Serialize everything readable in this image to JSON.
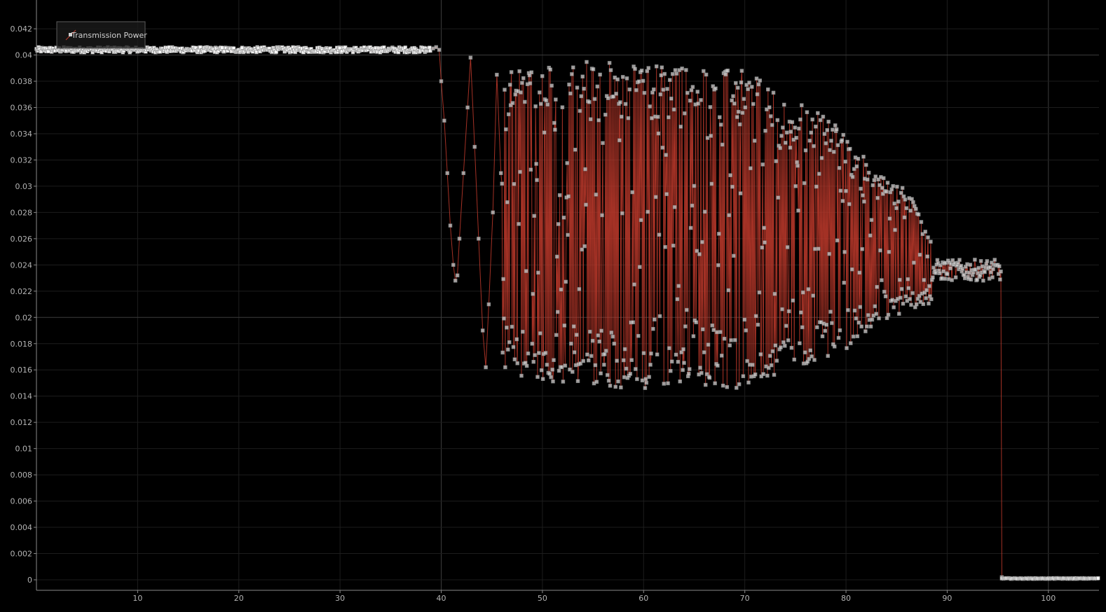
{
  "chart_data": {
    "type": "scatter",
    "title": "",
    "xlabel": "",
    "ylabel": "",
    "xlim": [
      0,
      105
    ],
    "ylim": [
      0,
      0.0435
    ],
    "x_ticks": [
      10,
      20,
      30,
      40,
      50,
      60,
      70,
      80,
      90,
      100
    ],
    "x_tick_labels": [
      "10",
      "20",
      "30",
      "40",
      "50",
      "60",
      "70",
      "80",
      "90",
      "100"
    ],
    "y_ticks": [
      0,
      0.002,
      0.004,
      0.006,
      0.008,
      0.01,
      0.012,
      0.014,
      0.016,
      0.018,
      0.02,
      0.022,
      0.024,
      0.026,
      0.028,
      0.03,
      0.032,
      0.034,
      0.036,
      0.038,
      0.04,
      0.042
    ],
    "y_tick_labels": [
      "0",
      "0.002",
      "0.004",
      "0.006",
      "0.008",
      "0.01",
      "0.012",
      "0.014",
      "0.016",
      "0.018",
      "0.02",
      "0.022",
      "0.024",
      "0.026",
      "0.028",
      "0.03",
      "0.032",
      "0.034",
      "0.036",
      "0.038",
      "0.04",
      "0.042"
    ],
    "major_x_gridlines": [
      40,
      100
    ],
    "major_y_gridlines": [
      0.02,
      0.04
    ],
    "grid": true,
    "legend": {
      "position": "top-left",
      "entries": [
        "Transmission Power"
      ]
    },
    "series": [
      {
        "name": "Transmission Power",
        "line_color": "#c0392b",
        "marker_color": "#cfcfcf",
        "marker": "square",
        "segments": [
          {
            "phase": "stable",
            "x_range": [
              0,
              39
            ],
            "y_level": 0.0404,
            "y_spread": 0.0002
          },
          {
            "phase": "bump",
            "points": [
              [
                38.5,
                0.0403
              ],
              [
                39.2,
                0.0405
              ],
              [
                39.5,
                0.0406
              ],
              [
                39.8,
                0.0404
              ]
            ]
          },
          {
            "phase": "drop",
            "points": [
              [
                40,
                0.038
              ],
              [
                40.3,
                0.035
              ],
              [
                40.6,
                0.031
              ],
              [
                40.9,
                0.027
              ],
              [
                41.2,
                0.024
              ],
              [
                41.4,
                0.0228
              ],
              [
                41.6,
                0.0232
              ],
              [
                41.8,
                0.026
              ],
              [
                42.2,
                0.031
              ],
              [
                42.6,
                0.036
              ],
              [
                42.9,
                0.0398
              ]
            ]
          },
          {
            "phase": "first-cycles",
            "points": [
              [
                43.3,
                0.033
              ],
              [
                43.7,
                0.026
              ],
              [
                44.1,
                0.019
              ],
              [
                44.4,
                0.0162
              ],
              [
                44.7,
                0.021
              ],
              [
                45.1,
                0.028
              ],
              [
                45.5,
                0.0385
              ],
              [
                45.9,
                0.031
              ]
            ]
          },
          {
            "phase": "oscillation",
            "x_range": [
              46,
              88.5
            ],
            "upper_envelope": [
              [
                46,
                0.0386
              ],
              [
                55,
                0.0396
              ],
              [
                62,
                0.0392
              ],
              [
                70,
                0.0388
              ],
              [
                75,
                0.0368
              ],
              [
                80,
                0.0342
              ],
              [
                83,
                0.031
              ],
              [
                86,
                0.0298
              ],
              [
                88.5,
                0.0265
              ]
            ],
            "lower_envelope": [
              [
                46,
                0.0158
              ],
              [
                55,
                0.0145
              ],
              [
                62,
                0.0146
              ],
              [
                70,
                0.0146
              ],
              [
                75,
                0.0162
              ],
              [
                80,
                0.0175
              ],
              [
                83,
                0.0196
              ],
              [
                86,
                0.0205
              ],
              [
                88.5,
                0.021
              ]
            ]
          },
          {
            "phase": "settling",
            "x_range": [
              88.5,
              95.3
            ],
            "y_level": 0.0236,
            "y_spread": 0.0008
          },
          {
            "phase": "cutoff",
            "points": [
              [
                95.3,
                0.0235
              ],
              [
                95.4,
                0.0002
              ]
            ]
          },
          {
            "phase": "zero",
            "x_range": [
              95.4,
              105
            ],
            "y_level": 0.0001,
            "y_spread": 3e-05
          }
        ]
      }
    ]
  },
  "colors": {
    "background": "#000000",
    "grid_minor": "#1d1d1d",
    "grid_major": "#3c3c3c",
    "axis": "#8a8a8a",
    "tick_label": "#b4b4b4",
    "legend_fill": "#1a1a1a",
    "legend_stroke": "#5a5a5a",
    "series_line": "#c0392b",
    "series_marker": "#cfcfcf"
  }
}
